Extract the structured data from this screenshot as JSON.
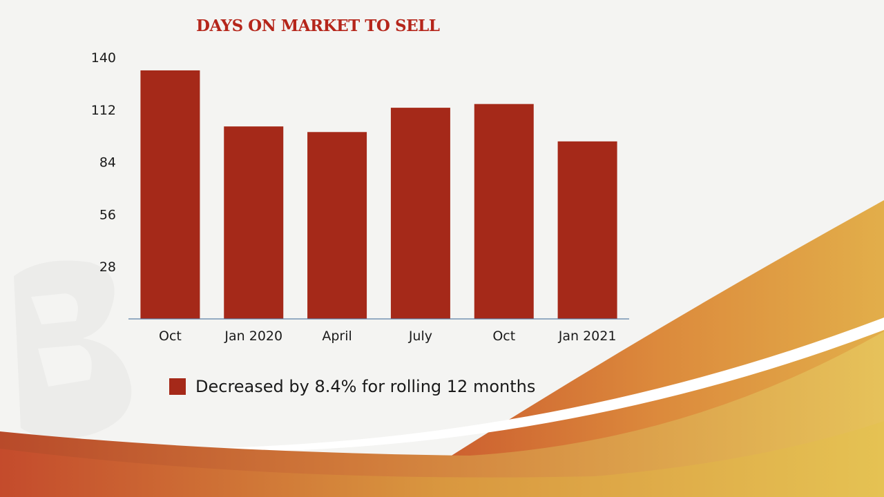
{
  "colors": {
    "bar": "#a52919",
    "title": "#b5261b",
    "axis": "#5b7fa6",
    "text": "#1a1a1a"
  },
  "chart_data": {
    "type": "bar",
    "title": "DAYS ON MARKET TO SELL",
    "categories": [
      "Oct",
      "Jan 2020",
      "April",
      "July",
      "Oct",
      "Jan 2021"
    ],
    "series": [
      {
        "values": [
          133,
          103,
          100,
          113,
          115,
          95
        ]
      }
    ],
    "yticks": [
      28,
      56,
      84,
      112,
      140
    ],
    "ylim": [
      0,
      140
    ],
    "xlabel": "",
    "ylabel": "",
    "grid": false,
    "legend": {
      "placement": "bottom",
      "label": "Decreased by 8.4% for rolling 12 months"
    }
  }
}
